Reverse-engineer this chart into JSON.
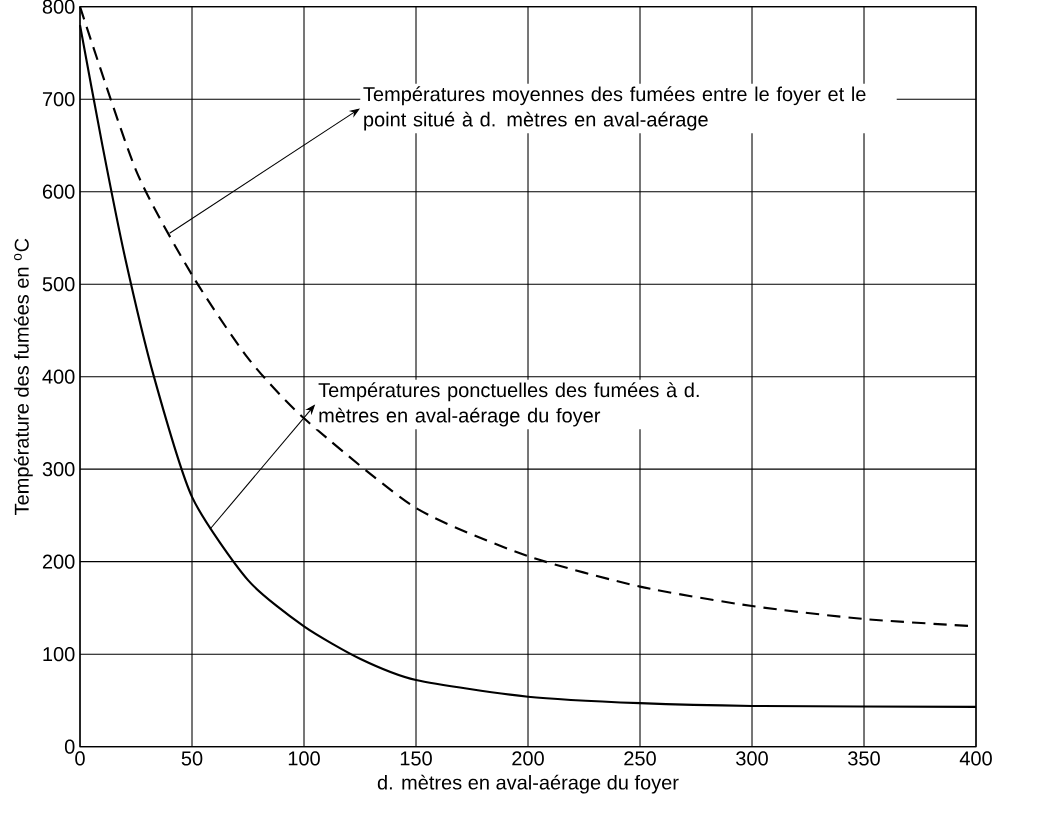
{
  "chart_data": {
    "type": "line",
    "xlabel": "d. mètres en aval-aérage du foyer",
    "ylabel": "Température des fumées en $^{o}$C",
    "xlim": [
      0,
      400
    ],
    "ylim": [
      0,
      800
    ],
    "xticks": [
      0,
      50,
      100,
      150,
      200,
      250,
      300,
      350,
      400
    ],
    "yticks": [
      0,
      100,
      200,
      300,
      400,
      500,
      600,
      700,
      800
    ],
    "grid": true,
    "marker": "none",
    "series": [
      {
        "color": "#000000",
        "line_style": "solid",
        "x": [
          0,
          10,
          20,
          33,
          50,
          75,
          100,
          125,
          150,
          200,
          250,
          300,
          400
        ],
        "values": [
          780,
          650,
          530,
          400,
          270,
          180,
          130,
          95,
          72,
          54,
          47,
          44,
          43
        ]
      },
      {
        "color": "#000000",
        "line_style": "dashed",
        "x": [
          0,
          25,
          50,
          75,
          100,
          150,
          200,
          250,
          300,
          350,
          400
        ],
        "values": [
          800,
          623,
          510,
          420,
          355,
          258,
          206,
          173,
          152,
          138,
          130
        ]
      }
    ],
    "annotations": [
      {
        "text": "Températures moyennes des fumées entre le foyer et le point situé à d. mètres en aval-aérage",
        "x": 40,
        "y": 555
      },
      {
        "text": "Températures ponctuelles des fumées à d. mètres en aval-aérage du foyer",
        "x": 58,
        "y": 235
      }
    ]
  }
}
